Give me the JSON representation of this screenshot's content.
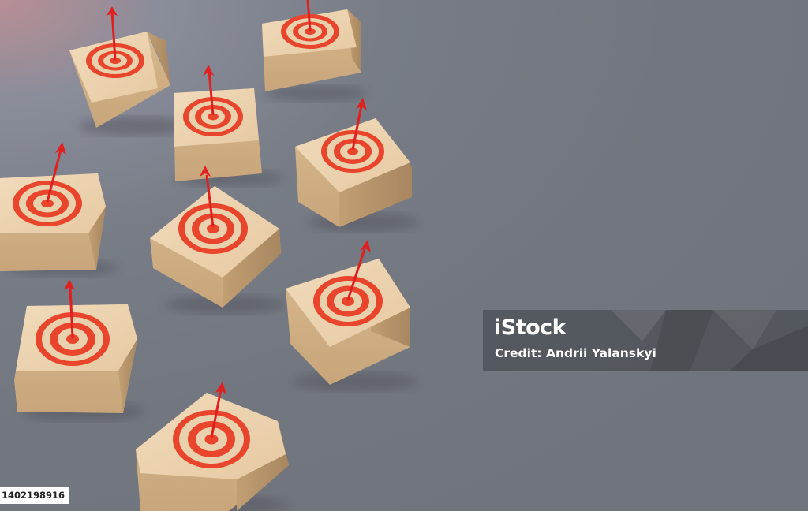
{
  "photo": {
    "subject": "wooden-blocks-with-red-targets-and-arrows",
    "colors": {
      "background": "#72767f",
      "wood": "#ead1ae",
      "wood_shade": "#cfb089",
      "target_red": "#e8452c",
      "arrow_red": "#e0201e"
    }
  },
  "watermark": {
    "logo": "iStock",
    "credit": "Credit: Andrii Yalanskyi"
  },
  "image_id": "1402198916"
}
